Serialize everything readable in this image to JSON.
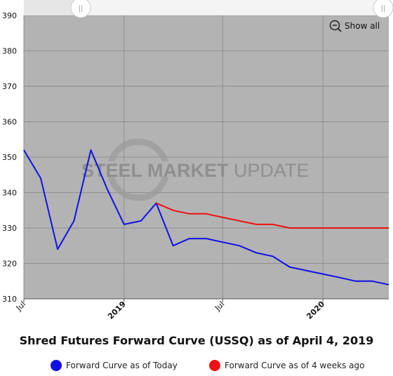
{
  "controls": {
    "show_all_label": "Show all",
    "range_handle_glyph": "||"
  },
  "watermark": {
    "text_bold": "STEEL MARKET",
    "text_light": "UPDATE"
  },
  "chart_data": {
    "type": "line",
    "title": "Shred Futures Forward Curve (USSQ) as of April 4, 2019",
    "xlabel": "",
    "ylabel": "",
    "ylim": [
      310,
      390
    ],
    "yticks": [
      310,
      320,
      330,
      340,
      350,
      360,
      370,
      380,
      390
    ],
    "xlim": [
      "2018-07-01",
      "2020-05-01"
    ],
    "xticks": [
      {
        "date": "2018-07-01",
        "label": "Jul",
        "bold": false
      },
      {
        "date": "2019-01-01",
        "label": "2019",
        "bold": true
      },
      {
        "date": "2019-07-01",
        "label": "Jul",
        "bold": false
      },
      {
        "date": "2020-01-01",
        "label": "2020",
        "bold": true
      }
    ],
    "grid": true,
    "legend_position": "bottom",
    "background": "#b3b3b3",
    "series": [
      {
        "name": "Forward Curve as of Today",
        "color": "#1010e6",
        "points": [
          {
            "x": "2018-07-01",
            "y": 352
          },
          {
            "x": "2018-08-01",
            "y": 344
          },
          {
            "x": "2018-09-01",
            "y": 324
          },
          {
            "x": "2018-10-01",
            "y": 332
          },
          {
            "x": "2018-11-01",
            "y": 352
          },
          {
            "x": "2018-12-01",
            "y": 341
          },
          {
            "x": "2019-01-01",
            "y": 331
          },
          {
            "x": "2019-02-01",
            "y": 332
          },
          {
            "x": "2019-03-01",
            "y": 337
          },
          {
            "x": "2019-04-01",
            "y": 325
          },
          {
            "x": "2019-05-01",
            "y": 327
          },
          {
            "x": "2019-06-01",
            "y": 327
          },
          {
            "x": "2019-07-01",
            "y": 326
          },
          {
            "x": "2019-08-01",
            "y": 325
          },
          {
            "x": "2019-09-01",
            "y": 323
          },
          {
            "x": "2019-10-01",
            "y": 322
          },
          {
            "x": "2019-11-01",
            "y": 319
          },
          {
            "x": "2019-12-01",
            "y": 318
          },
          {
            "x": "2020-01-01",
            "y": 317
          },
          {
            "x": "2020-02-01",
            "y": 316
          },
          {
            "x": "2020-03-01",
            "y": 315
          },
          {
            "x": "2020-04-01",
            "y": 315
          },
          {
            "x": "2020-05-01",
            "y": 314
          }
        ]
      },
      {
        "name": "Forward Curve as of 4 weeks ago",
        "color": "#ee1111",
        "points": [
          {
            "x": "2019-03-01",
            "y": 337
          },
          {
            "x": "2019-04-01",
            "y": 335
          },
          {
            "x": "2019-05-01",
            "y": 334
          },
          {
            "x": "2019-06-01",
            "y": 334
          },
          {
            "x": "2019-07-01",
            "y": 333
          },
          {
            "x": "2019-08-01",
            "y": 332
          },
          {
            "x": "2019-09-01",
            "y": 331
          },
          {
            "x": "2019-10-01",
            "y": 331
          },
          {
            "x": "2019-11-01",
            "y": 330
          },
          {
            "x": "2019-12-01",
            "y": 330
          },
          {
            "x": "2020-01-01",
            "y": 330
          },
          {
            "x": "2020-02-01",
            "y": 330
          },
          {
            "x": "2020-03-01",
            "y": 330
          },
          {
            "x": "2020-04-01",
            "y": 330
          },
          {
            "x": "2020-05-01",
            "y": 330
          }
        ]
      }
    ]
  }
}
